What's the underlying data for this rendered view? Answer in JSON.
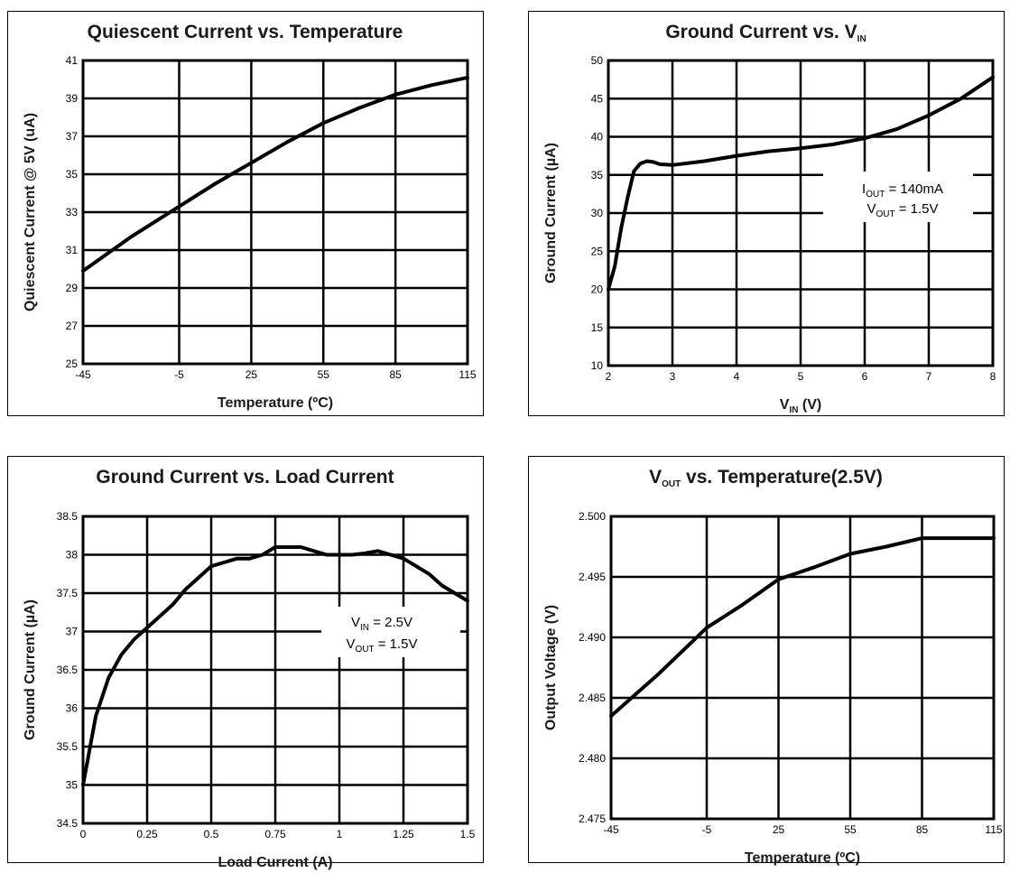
{
  "chart_data": [
    {
      "id": "c1",
      "type": "line",
      "title": "Quiescent Current vs. Temperature",
      "xlabel": "Temperature (ºC)",
      "ylabel": "Quiescent Current @ 5V (uA)",
      "xlim": [
        -45,
        115
      ],
      "ylim": [
        25,
        41
      ],
      "xticks": [
        -45,
        -5,
        25,
        55,
        85,
        115
      ],
      "yticks": [
        25,
        27,
        29,
        31,
        33,
        35,
        37,
        39,
        41
      ],
      "xtick_labels": [
        "-45",
        "-5",
        "25",
        "55",
        "85",
        "115"
      ],
      "ytick_labels": [
        "25",
        "27",
        "29",
        "31",
        "33",
        "35",
        "37",
        "39",
        "41"
      ],
      "grid": true,
      "series": [
        {
          "x": [
            -45,
            -25,
            -5,
            10,
            25,
            40,
            55,
            70,
            85,
            100,
            115
          ],
          "y": [
            29.9,
            31.7,
            33.3,
            34.5,
            35.6,
            36.7,
            37.7,
            38.5,
            39.2,
            39.7,
            40.1
          ]
        }
      ]
    },
    {
      "id": "c2",
      "type": "line",
      "title": {
        "main": "Ground Current vs. V",
        "sub": "IN"
      },
      "xlabel": {
        "main": "V",
        "sub": "IN",
        "rest": " (V)"
      },
      "ylabel": "Ground Current (µA)",
      "xlim": [
        2,
        8
      ],
      "ylim": [
        10,
        50
      ],
      "xticks": [
        2,
        3,
        4,
        5,
        6,
        7,
        8
      ],
      "yticks": [
        10,
        15,
        20,
        25,
        30,
        35,
        40,
        45,
        50
      ],
      "xtick_labels": [
        "2",
        "3",
        "4",
        "5",
        "6",
        "7",
        "8"
      ],
      "ytick_labels": [
        "10",
        "15",
        "20",
        "25",
        "30",
        "35",
        "40",
        "45",
        "50"
      ],
      "grid": true,
      "annotation": [
        {
          "main": "I",
          "sub": "OUT",
          "rest": " = 140mA"
        },
        {
          "main": "V",
          "sub": "OUT",
          "rest": " = 1.5V"
        }
      ],
      "series": [
        {
          "x": [
            2,
            2.1,
            2.2,
            2.3,
            2.4,
            2.5,
            2.6,
            2.7,
            2.8,
            3.0,
            3.5,
            4.0,
            4.5,
            5.0,
            5.5,
            6.0,
            6.5,
            7.0,
            7.5,
            8.0
          ],
          "y": [
            20,
            23,
            28,
            32,
            35.5,
            36.5,
            36.8,
            36.7,
            36.4,
            36.3,
            36.8,
            37.5,
            38.1,
            38.5,
            39.0,
            39.8,
            41.0,
            42.8,
            45.0,
            47.8
          ]
        }
      ]
    },
    {
      "id": "c3",
      "type": "line",
      "title": "Ground Current vs. Load Current",
      "xlabel": "Load Current (A)",
      "ylabel": "Ground Current (µA)",
      "xlim": [
        0,
        1.5
      ],
      "ylim": [
        34.5,
        38.5
      ],
      "xticks": [
        0,
        0.25,
        0.5,
        0.75,
        1,
        1.25,
        1.5
      ],
      "yticks": [
        34.5,
        35,
        35.5,
        36,
        36.5,
        37,
        37.5,
        38,
        38.5
      ],
      "xtick_labels": [
        "0",
        "0.25",
        "0.5",
        "0.75",
        "1",
        "1.25",
        "1.5"
      ],
      "ytick_labels": [
        "34.5",
        "35",
        "35.5",
        "36",
        "36.5",
        "37",
        "37.5",
        "38",
        "38.5"
      ],
      "grid": true,
      "annotation": [
        {
          "main": "V",
          "sub": "IN",
          "rest": " = 2.5V"
        },
        {
          "main": "V",
          "sub": "OUT",
          "rest": " = 1.5V"
        }
      ],
      "series": [
        {
          "x": [
            0,
            0.05,
            0.1,
            0.15,
            0.2,
            0.25,
            0.3,
            0.35,
            0.4,
            0.45,
            0.5,
            0.55,
            0.6,
            0.65,
            0.7,
            0.75,
            0.8,
            0.85,
            0.9,
            0.95,
            1.0,
            1.05,
            1.1,
            1.15,
            1.2,
            1.25,
            1.3,
            1.35,
            1.4,
            1.45,
            1.5
          ],
          "y": [
            35.0,
            35.9,
            36.4,
            36.7,
            36.9,
            37.05,
            37.2,
            37.35,
            37.55,
            37.7,
            37.85,
            37.9,
            37.95,
            37.95,
            38.0,
            38.1,
            38.1,
            38.1,
            38.05,
            38.0,
            38.0,
            38.0,
            38.02,
            38.05,
            38.0,
            37.95,
            37.85,
            37.75,
            37.6,
            37.5,
            37.4
          ]
        }
      ]
    },
    {
      "id": "c4",
      "type": "line",
      "title": {
        "main": "V",
        "sub": "OUT",
        "rest": " vs. Temperature(2.5V)"
      },
      "xlabel": "Temperature (ºC)",
      "ylabel": "Output Voltage (V)",
      "xlim": [
        -45,
        115
      ],
      "ylim": [
        2.475,
        2.5
      ],
      "xticks": [
        -45,
        -5,
        25,
        55,
        85,
        115
      ],
      "yticks": [
        2.475,
        2.48,
        2.485,
        2.49,
        2.495,
        2.5
      ],
      "xtick_labels": [
        "-45",
        "-5",
        "25",
        "55",
        "85",
        "115"
      ],
      "ytick_labels": [
        "2.475",
        "2.480",
        "2.485",
        "2.490",
        "2.495",
        "2.500"
      ],
      "grid": true,
      "series": [
        {
          "x": [
            -45,
            -25,
            -5,
            10,
            25,
            40,
            55,
            70,
            85,
            100,
            115
          ],
          "y": [
            2.4835,
            2.487,
            2.4908,
            2.4927,
            2.4948,
            2.4958,
            2.4969,
            2.4975,
            2.4982,
            2.4982,
            2.4982
          ]
        }
      ]
    }
  ]
}
